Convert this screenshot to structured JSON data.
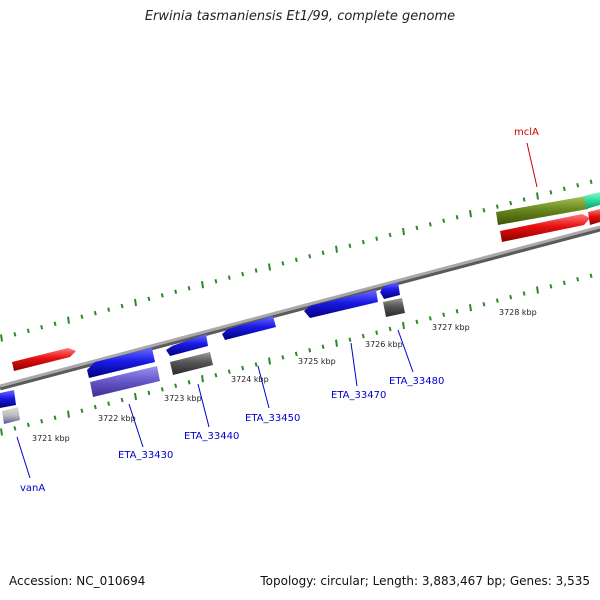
{
  "title": "Erwinia tasmaniensis Et1/99, complete genome",
  "footer": {
    "accession": "Accession: NC_010694",
    "summary": "Topology: circular; Length: 3,883,467 bp; Genes: 3,535"
  },
  "kbp_ticks": [
    "3721 kbp",
    "3722 kbp",
    "3723 kbp",
    "3724 kbp",
    "3725 kbp",
    "3726 kbp",
    "3727 kbp",
    "3728 kbp"
  ],
  "gene_labels": [
    {
      "text": "vanA",
      "color": "#0000cc"
    },
    {
      "text": "ETA_33430",
      "color": "#0000cc"
    },
    {
      "text": "ETA_33440",
      "color": "#0000cc"
    },
    {
      "text": "ETA_33450",
      "color": "#0000cc"
    },
    {
      "text": "ETA_33470",
      "color": "#0000cc"
    },
    {
      "text": "ETA_33480",
      "color": "#0000cc"
    },
    {
      "text": "mclA",
      "color": "#cc0000"
    }
  ],
  "colors": {
    "backbone": "#8c8c8c",
    "tick_marks": "#2a8a2a",
    "gene_blue": "#1a1ae6",
    "gene_red": "#e60f0f",
    "gene_olive": "#6b8a1f",
    "gene_purple": "#6a5acd",
    "gene_gray": "#555555",
    "gene_teal": "#33e0a0"
  }
}
